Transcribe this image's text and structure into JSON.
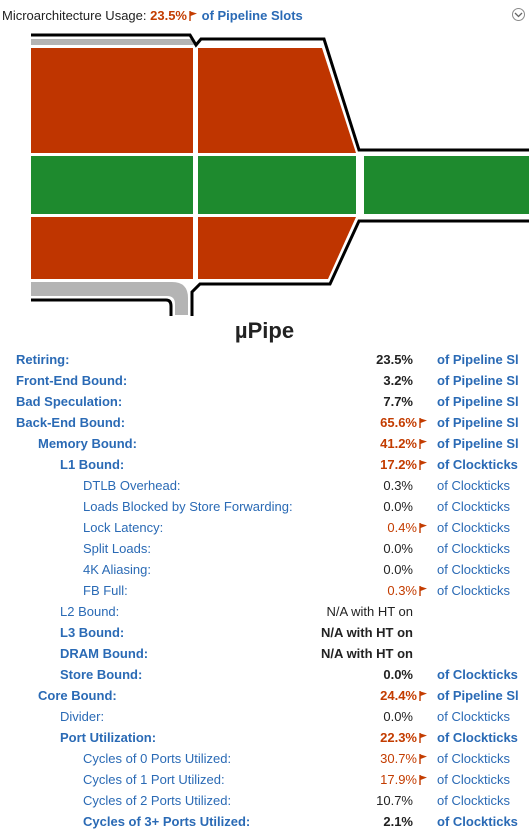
{
  "header": {
    "label": "Microarchitecture Usage:",
    "value": "23.5%",
    "unit": "of Pipeline Slots"
  },
  "diagram_title": "µPipe",
  "colors": {
    "retiring": "#1e8a2e",
    "stall": "#bf3500",
    "grey": "#b4b4b4",
    "link": "#2a6ab5",
    "highlight": "#c33c00"
  },
  "metrics": [
    {
      "id": "retiring",
      "label": "Retiring:",
      "value": "23.5%",
      "unit": "of Pipeline Sl",
      "level": 0,
      "bold": true,
      "flag": false,
      "hl": false
    },
    {
      "id": "front-end-bound",
      "label": "Front-End Bound:",
      "value": "3.2%",
      "unit": "of Pipeline Sl",
      "level": 0,
      "bold": true,
      "flag": false,
      "hl": false
    },
    {
      "id": "bad-speculation",
      "label": "Bad Speculation:",
      "value": "7.7%",
      "unit": "of Pipeline Sl",
      "level": 0,
      "bold": true,
      "flag": false,
      "hl": false
    },
    {
      "id": "back-end-bound",
      "label": "Back-End Bound:",
      "value": "65.6%",
      "unit": "of Pipeline Sl",
      "level": 0,
      "bold": true,
      "flag": true,
      "hl": true
    },
    {
      "id": "memory-bound",
      "label": "Memory Bound:",
      "value": "41.2%",
      "unit": "of Pipeline Sl",
      "level": 1,
      "bold": true,
      "flag": true,
      "hl": true
    },
    {
      "id": "l1-bound",
      "label": "L1 Bound:",
      "value": "17.2%",
      "unit": "of Clockticks",
      "level": 2,
      "bold": true,
      "flag": true,
      "hl": true
    },
    {
      "id": "dtlb-overhead",
      "label": "DTLB Overhead:",
      "value": "0.3%",
      "unit": "of Clockticks",
      "level": 3,
      "bold": false,
      "flag": false,
      "hl": false
    },
    {
      "id": "loads-blocked",
      "label": "Loads Blocked by Store Forwarding:",
      "value": "0.0%",
      "unit": "of Clockticks",
      "level": 3,
      "bold": false,
      "flag": false,
      "hl": false
    },
    {
      "id": "lock-latency",
      "label": "Lock Latency:",
      "value": "0.4%",
      "unit": "of Clockticks",
      "level": 3,
      "bold": false,
      "flag": true,
      "hl": true
    },
    {
      "id": "split-loads",
      "label": "Split Loads:",
      "value": "0.0%",
      "unit": "of Clockticks",
      "level": 3,
      "bold": false,
      "flag": false,
      "hl": false
    },
    {
      "id": "4k-aliasing",
      "label": "4K Aliasing:",
      "value": "0.0%",
      "unit": "of Clockticks",
      "level": 3,
      "bold": false,
      "flag": false,
      "hl": false
    },
    {
      "id": "fb-full",
      "label": "FB Full:",
      "value": "0.3%",
      "unit": "of Clockticks",
      "level": 3,
      "bold": false,
      "flag": true,
      "hl": true
    },
    {
      "id": "l2-bound",
      "label": "L2 Bound:",
      "value": "N/A with HT on",
      "unit": "",
      "level": 2,
      "bold": false,
      "flag": false,
      "hl": false
    },
    {
      "id": "l3-bound",
      "label": "L3 Bound:",
      "value": "N/A with HT on",
      "unit": "",
      "level": 2,
      "bold": true,
      "flag": false,
      "hl": false
    },
    {
      "id": "dram-bound",
      "label": "DRAM Bound:",
      "value": "N/A with HT on",
      "unit": "",
      "level": 2,
      "bold": true,
      "flag": false,
      "hl": false
    },
    {
      "id": "store-bound",
      "label": "Store Bound:",
      "value": "0.0%",
      "unit": "of Clockticks",
      "level": 2,
      "bold": true,
      "flag": false,
      "hl": false
    },
    {
      "id": "core-bound",
      "label": "Core Bound:",
      "value": "24.4%",
      "unit": "of Pipeline Sl",
      "level": 1,
      "bold": true,
      "flag": true,
      "hl": true
    },
    {
      "id": "divider",
      "label": "Divider:",
      "value": "0.0%",
      "unit": "of Clockticks",
      "level": 2,
      "bold": false,
      "flag": false,
      "hl": false
    },
    {
      "id": "port-utilization",
      "label": "Port Utilization:",
      "value": "22.3%",
      "unit": "of Clockticks",
      "level": 2,
      "bold": true,
      "flag": true,
      "hl": true
    },
    {
      "id": "cycles-0-ports",
      "label": "Cycles of 0 Ports Utilized:",
      "value": "30.7%",
      "unit": "of Clockticks",
      "level": 3,
      "bold": false,
      "flag": true,
      "hl": true
    },
    {
      "id": "cycles-1-port",
      "label": "Cycles of 1 Port Utilized:",
      "value": "17.9%",
      "unit": "of Clockticks",
      "level": 3,
      "bold": false,
      "flag": true,
      "hl": true
    },
    {
      "id": "cycles-2-ports",
      "label": "Cycles of 2 Ports Utilized:",
      "value": "10.7%",
      "unit": "of Clockticks",
      "level": 3,
      "bold": false,
      "flag": false,
      "hl": false
    },
    {
      "id": "cycles-3plus-ports",
      "label": "Cycles of 3+ Ports Utilized:",
      "value": "2.1%",
      "unit": "of Clockticks",
      "level": 3,
      "bold": true,
      "flag": false,
      "hl": false
    }
  ]
}
